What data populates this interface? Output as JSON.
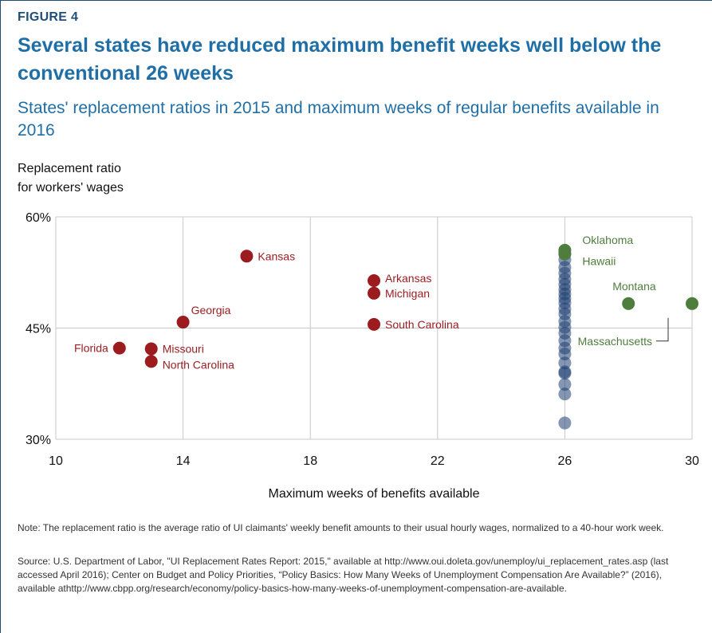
{
  "figure_label": "FIGURE 4",
  "title": "Several states have reduced maximum benefit weeks well below the conventional 26 weeks",
  "subtitle": "States' replacement ratios in 2015 and maximum weeks of regular benefits available in 2016",
  "ylabel_lines": [
    "Replacement ratio",
    "for workers' wages"
  ],
  "note": "Note: The replacement ratio is the average ratio of UI claimants' weekly benefit amounts to their usual hourly wages, normalized to a 40-hour work week.",
  "source": "Source: U.S. Department of Labor, \"UI Replacement Rates Report: 2015,\" available at http://www.oui.doleta.gov/unemploy/ui_replacement_rates.asp (last accessed April 2016); Center on Budget and Policy Priorities, “Policy Basics: How Many Weeks of Unemployment Compensation Are Available?” (2016), available athttp://www.cbpp.org/research/economy/policy-basics-how-many-weeks-of-unemployment-compensation-are-available.",
  "colors": {
    "reduced": "#9b1b1f",
    "standard": "#1f3f73",
    "extended": "#4e7d3e",
    "grid": "#c8c8c8",
    "title": "#1f6fa6"
  },
  "chart_data": {
    "type": "scatter",
    "xlabel": "Maximum weeks of benefits available",
    "xlim": [
      10,
      30
    ],
    "ylim": [
      30,
      60
    ],
    "xticks": [
      10,
      14,
      18,
      22,
      26,
      30
    ],
    "xtick_labels": [
      "10",
      "14",
      "18",
      "22",
      "26",
      "30"
    ],
    "yticks": [
      30,
      45,
      60
    ],
    "ytick_labels": [
      "30%",
      "45%",
      "60%"
    ],
    "grid": true,
    "series": [
      {
        "group": "reduced",
        "points": [
          {
            "label": "Florida",
            "x": 12,
            "y": 42.3
          },
          {
            "label": "Missouri",
            "x": 13,
            "y": 42.2
          },
          {
            "label": "North Carolina",
            "x": 13,
            "y": 40.5
          },
          {
            "label": "Georgia",
            "x": 14,
            "y": 45.8
          },
          {
            "label": "Kansas",
            "x": 16,
            "y": 54.7
          },
          {
            "label": "Arkansas",
            "x": 20,
            "y": 51.4
          },
          {
            "label": "Michigan",
            "x": 20,
            "y": 49.7
          },
          {
            "label": "South Carolina",
            "x": 20,
            "y": 45.5
          }
        ]
      },
      {
        "group": "standard",
        "points": [
          {
            "x": 26,
            "y": 55.0
          },
          {
            "x": 26,
            "y": 54.2
          },
          {
            "x": 26,
            "y": 53.2
          },
          {
            "x": 26,
            "y": 52.4
          },
          {
            "x": 26,
            "y": 51.6
          },
          {
            "x": 26,
            "y": 50.9
          },
          {
            "x": 26,
            "y": 50.2
          },
          {
            "x": 26,
            "y": 49.6
          },
          {
            "x": 26,
            "y": 49.0
          },
          {
            "x": 26,
            "y": 48.4
          },
          {
            "x": 26,
            "y": 47.6
          },
          {
            "x": 26,
            "y": 46.9
          },
          {
            "x": 26,
            "y": 45.9
          },
          {
            "x": 26,
            "y": 45.1
          },
          {
            "x": 26,
            "y": 44.3
          },
          {
            "x": 26,
            "y": 43.3
          },
          {
            "x": 26,
            "y": 42.3
          },
          {
            "x": 26,
            "y": 41.5
          },
          {
            "x": 26,
            "y": 40.3
          },
          {
            "x": 26,
            "y": 39.1
          },
          {
            "x": 26,
            "y": 38.9
          },
          {
            "x": 26,
            "y": 37.4
          },
          {
            "x": 26,
            "y": 36.1
          },
          {
            "x": 26,
            "y": 32.2
          }
        ]
      },
      {
        "group": "extended",
        "points": [
          {
            "label": "Oklahoma",
            "x": 26,
            "y": 55.5
          },
          {
            "label": "Hawaii",
            "x": 26,
            "y": 55.0
          },
          {
            "label": "Montana",
            "x": 28,
            "y": 48.3
          },
          {
            "label": "Massachusetts",
            "x": 30,
            "y": 48.3
          }
        ]
      }
    ]
  }
}
